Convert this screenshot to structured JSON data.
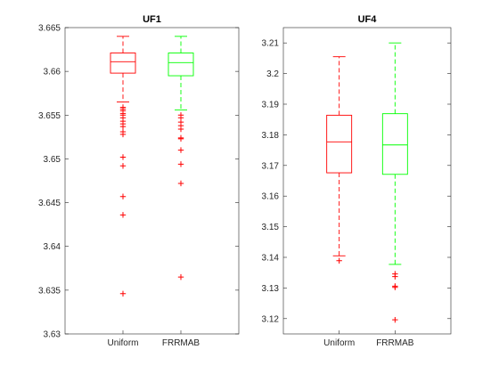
{
  "chart_data": [
    {
      "type": "box",
      "title": "UF1",
      "categories": [
        "Uniform",
        "FRRMAB"
      ],
      "ylim": [
        3.63,
        3.665
      ],
      "yticks": [
        3.63,
        3.635,
        3.64,
        3.645,
        3.65,
        3.655,
        3.66,
        3.665
      ],
      "ytick_labels": [
        "3.63",
        "3.635",
        "3.64",
        "3.645",
        "3.65",
        "3.655",
        "3.66",
        "3.665"
      ],
      "grid": false,
      "series": [
        {
          "color": "#ff0000",
          "q1": 3.6598,
          "median": 3.6611,
          "q3": 3.6621,
          "whisker_low": 3.6565,
          "whisker_high": 3.664,
          "outliers": [
            3.6559,
            3.6557,
            3.6555,
            3.6552,
            3.655,
            3.6547,
            3.6543,
            3.654,
            3.6537,
            3.6531,
            3.6528,
            3.6502,
            3.6492,
            3.6457,
            3.6436,
            3.6346
          ]
        },
        {
          "color": "#00ff00",
          "q1": 3.6595,
          "median": 3.661,
          "q3": 3.6621,
          "whisker_low": 3.6556,
          "whisker_high": 3.664,
          "outliers": [
            3.655,
            3.6547,
            3.6542,
            3.6538,
            3.6534,
            3.6524,
            3.6523,
            3.651,
            3.6494,
            3.6472,
            3.6365
          ]
        }
      ]
    },
    {
      "type": "box",
      "title": "UF4",
      "categories": [
        "Uniform",
        "FRRMAB"
      ],
      "ylim": [
        3.115,
        3.215
      ],
      "yticks": [
        3.12,
        3.13,
        3.14,
        3.15,
        3.16,
        3.17,
        3.18,
        3.19,
        3.2,
        3.21
      ],
      "ytick_labels": [
        "3.12",
        "3.13",
        "3.14",
        "3.15",
        "3.16",
        "3.17",
        "3.18",
        "3.19",
        "3.2",
        "3.21"
      ],
      "grid": false,
      "series": [
        {
          "color": "#ff0000",
          "q1": 3.1676,
          "median": 3.1777,
          "q3": 3.1864,
          "whisker_low": 3.1405,
          "whisker_high": 3.2055,
          "outliers": [
            3.1389
          ]
        },
        {
          "color": "#00ff00",
          "q1": 3.1671,
          "median": 3.1767,
          "q3": 3.1869,
          "whisker_low": 3.1377,
          "whisker_high": 3.21,
          "outliers": [
            3.1346,
            3.1337,
            3.1306,
            3.1302,
            3.1196
          ]
        }
      ]
    }
  ]
}
